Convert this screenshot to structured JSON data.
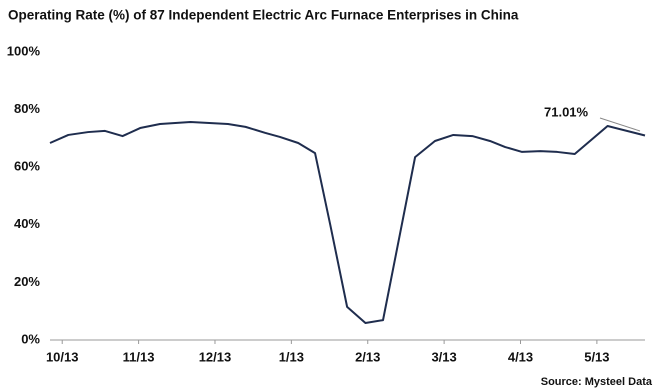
{
  "chart_data": {
    "type": "line",
    "title": "Operating Rate (%) of 87 Independent Electric Arc Furnace Enterprises in China",
    "source": "Source: Mysteel Data",
    "annotation": "71.01%",
    "x": [
      -0.16,
      0.08,
      0.34,
      0.56,
      0.79,
      1.02,
      1.28,
      1.68,
      2.17,
      2.4,
      2.66,
      2.85,
      3.09,
      3.31,
      3.51,
      3.73,
      3.97,
      4.2,
      4.62,
      4.88,
      5.12,
      5.37,
      5.6,
      5.8,
      6.02,
      6.26,
      6.48,
      6.71,
      7.14,
      7.63
    ],
    "series": [
      {
        "name": "Operating Rate",
        "color": "#1f2d4e",
        "values": [
          68.4,
          71.2,
          72.2,
          72.6,
          70.8,
          73.6,
          75.0,
          75.7,
          75.0,
          74.0,
          71.9,
          70.5,
          68.4,
          64.9,
          39.9,
          11.5,
          5.9,
          6.9,
          63.5,
          69.1,
          71.2,
          70.8,
          69.1,
          67.0,
          65.3,
          65.6,
          65.3,
          64.6,
          74.3,
          71.01
        ]
      }
    ],
    "xlim": [
      -0.16,
      7.63
    ],
    "xticks": [
      {
        "value": 0,
        "label": "10/13"
      },
      {
        "value": 1,
        "label": "11/13"
      },
      {
        "value": 2,
        "label": "12/13"
      },
      {
        "value": 3,
        "label": "1/13"
      },
      {
        "value": 4,
        "label": "2/13"
      },
      {
        "value": 5,
        "label": "3/13"
      },
      {
        "value": 6,
        "label": "4/13"
      },
      {
        "value": 7,
        "label": "5/13"
      }
    ],
    "ylim": [
      0,
      100
    ],
    "yticks": [
      {
        "value": 0,
        "label": "0%"
      },
      {
        "value": 20,
        "label": "20%"
      },
      {
        "value": 40,
        "label": "40%"
      },
      {
        "value": 60,
        "label": "60%"
      },
      {
        "value": 80,
        "label": "80%"
      },
      {
        "value": 100,
        "label": "100%"
      }
    ],
    "grid": false
  }
}
